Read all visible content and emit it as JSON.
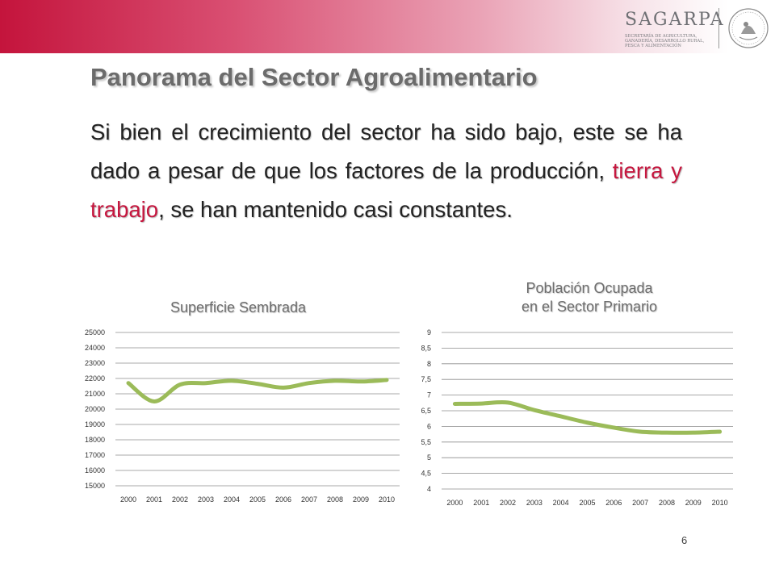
{
  "header": {
    "logo": {
      "wordmark": "SAGARPA",
      "subtitle": "Secretaría de Agricultura, Ganadería, Desarrollo Rural, Pesca y Alimentación",
      "seal": "Estados Unidos Mexicanos"
    }
  },
  "slide": {
    "title": "Panorama del Sector Agroalimentario",
    "body": {
      "part1": "Si bien el crecimiento del sector ha sido bajo, este se ha dado a pesar de que los factores de la producción, ",
      "highlight1": "tierra",
      "connector": " y ",
      "highlight2": "trabajo",
      "part2": ", se han mantenido casi constantes."
    },
    "page_number": "6"
  },
  "colors": {
    "accent": "#c6173f",
    "line": "#9bbb59",
    "title": "#6b6b6b"
  },
  "chart_data": [
    {
      "type": "line",
      "title": "Superficie Sembrada",
      "x": [
        "2000",
        "2001",
        "2002",
        "2003",
        "2004",
        "2005",
        "2006",
        "2007",
        "2008",
        "2009",
        "2010"
      ],
      "series": [
        {
          "values": [
            21700,
            20500,
            21600,
            21700,
            21850,
            21650,
            21400,
            21700,
            21850,
            21800,
            21900
          ]
        }
      ],
      "ylim": [
        15000,
        25000
      ],
      "yticks": [
        "15000",
        "16000",
        "17000",
        "18000",
        "19000",
        "20000",
        "21000",
        "22000",
        "23000",
        "24000",
        "25000"
      ],
      "grid": true,
      "legend": "none"
    },
    {
      "type": "line",
      "title": [
        "Población Ocupada",
        "en el Sector Primario"
      ],
      "x": [
        "2000",
        "2001",
        "2002",
        "2003",
        "2004",
        "2005",
        "2006",
        "2007",
        "2008",
        "2009",
        "2010"
      ],
      "series": [
        {
          "values": [
            6.72,
            6.73,
            6.76,
            6.52,
            6.32,
            6.12,
            5.96,
            5.83,
            5.8,
            5.8,
            5.83
          ]
        }
      ],
      "ylim": [
        4,
        9
      ],
      "yticks": [
        "4",
        "4,5",
        "5",
        "5,5",
        "6",
        "6,5",
        "7",
        "7,5",
        "8",
        "8,5",
        "9"
      ],
      "grid": true,
      "legend": "none"
    }
  ]
}
